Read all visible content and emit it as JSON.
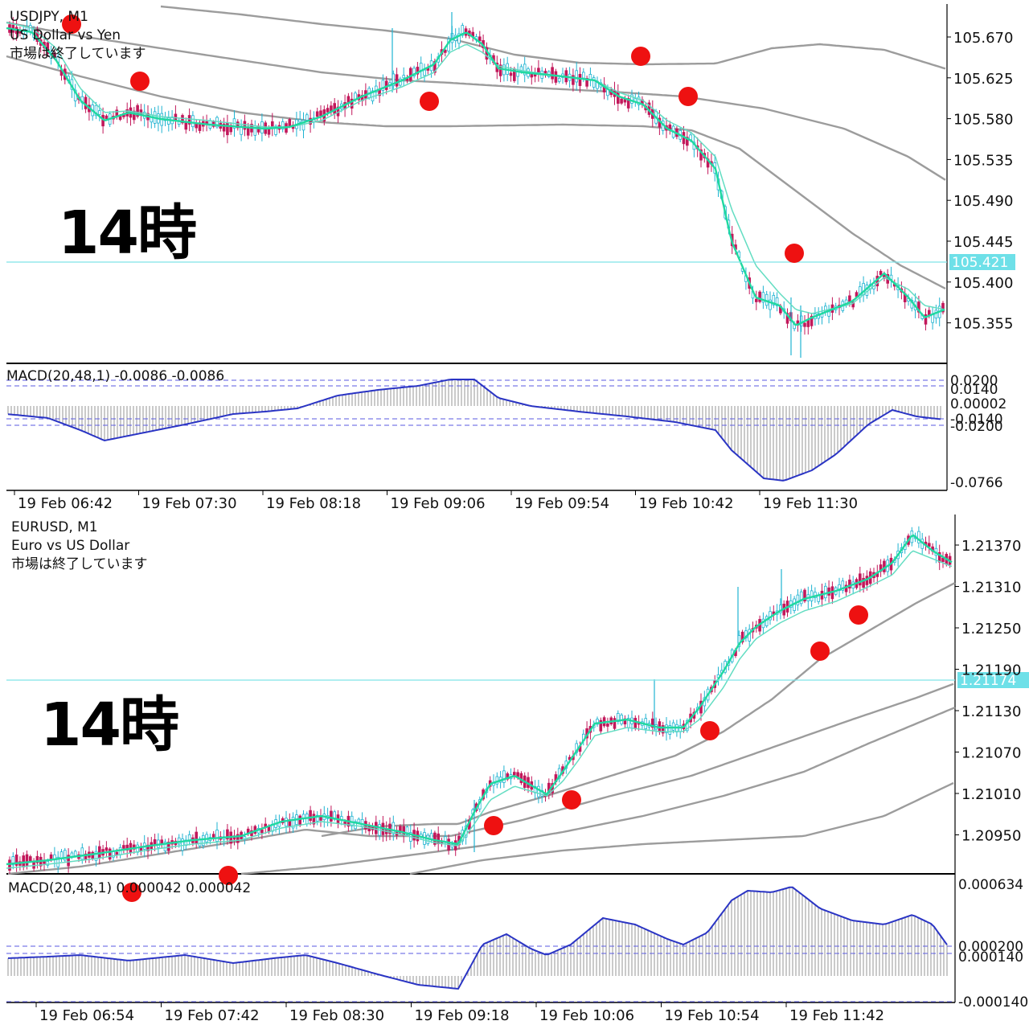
{
  "colors": {
    "band": "#9c9c9c",
    "ma_fast": "#1fd9a0",
    "ma_slow": "#63ddc2",
    "macd_line": "#2a34c4",
    "histogram": "#8a8a8a",
    "signal_dash": "#5a5ae0",
    "price_line": "#7fe3e8",
    "price_box": "#6ee0e8",
    "marker": "#ee1111",
    "bull": "#1fb3d1",
    "bear": "#c2185b"
  },
  "charts": [
    {
      "id": "usdjpy",
      "info": {
        "symbol": "USDJPY, M1",
        "description": "US Dollar vs Yen",
        "status": "市場は終了しています"
      },
      "annotation": "14時",
      "current_price": "105.421",
      "price_ticks": [
        "105.670",
        "105.625",
        "105.580",
        "105.535",
        "105.490",
        "105.445",
        "105.400",
        "105.355"
      ],
      "macd_label": "MACD(20,48,1) -0.0086 -0.0086",
      "macd_ticks": [
        "0.0200",
        "0.0140",
        "0.00002",
        "-0.0140",
        "-0.0200",
        "-0.0766"
      ],
      "time_labels": [
        "19 Feb 06:42",
        "19 Feb 07:30",
        "19 Feb 08:18",
        "19 Feb 09:06",
        "19 Feb 09:54",
        "19 Feb 10:42",
        "19 Feb 11:30"
      ]
    },
    {
      "id": "eurusd",
      "info": {
        "symbol": "EURUSD, M1",
        "description": "Euro vs US Dollar",
        "status": "市場は終了しています"
      },
      "annotation": "14時",
      "current_price": "1.21174",
      "price_ticks": [
        "1.21370",
        "1.21310",
        "1.21250",
        "1.21190",
        "1.21130",
        "1.21070",
        "1.21010",
        "1.20950"
      ],
      "macd_label": "MACD(20,48,1) 0.000042 0.000042",
      "macd_ticks": [
        "0.000634",
        "0.000200",
        "0.000140",
        "-0.000140"
      ],
      "time_labels": [
        "19 Feb 06:54",
        "19 Feb 07:42",
        "19 Feb 08:30",
        "19 Feb 09:18",
        "19 Feb 10:06",
        "19 Feb 10:54",
        "19 Feb 11:42"
      ]
    }
  ]
}
